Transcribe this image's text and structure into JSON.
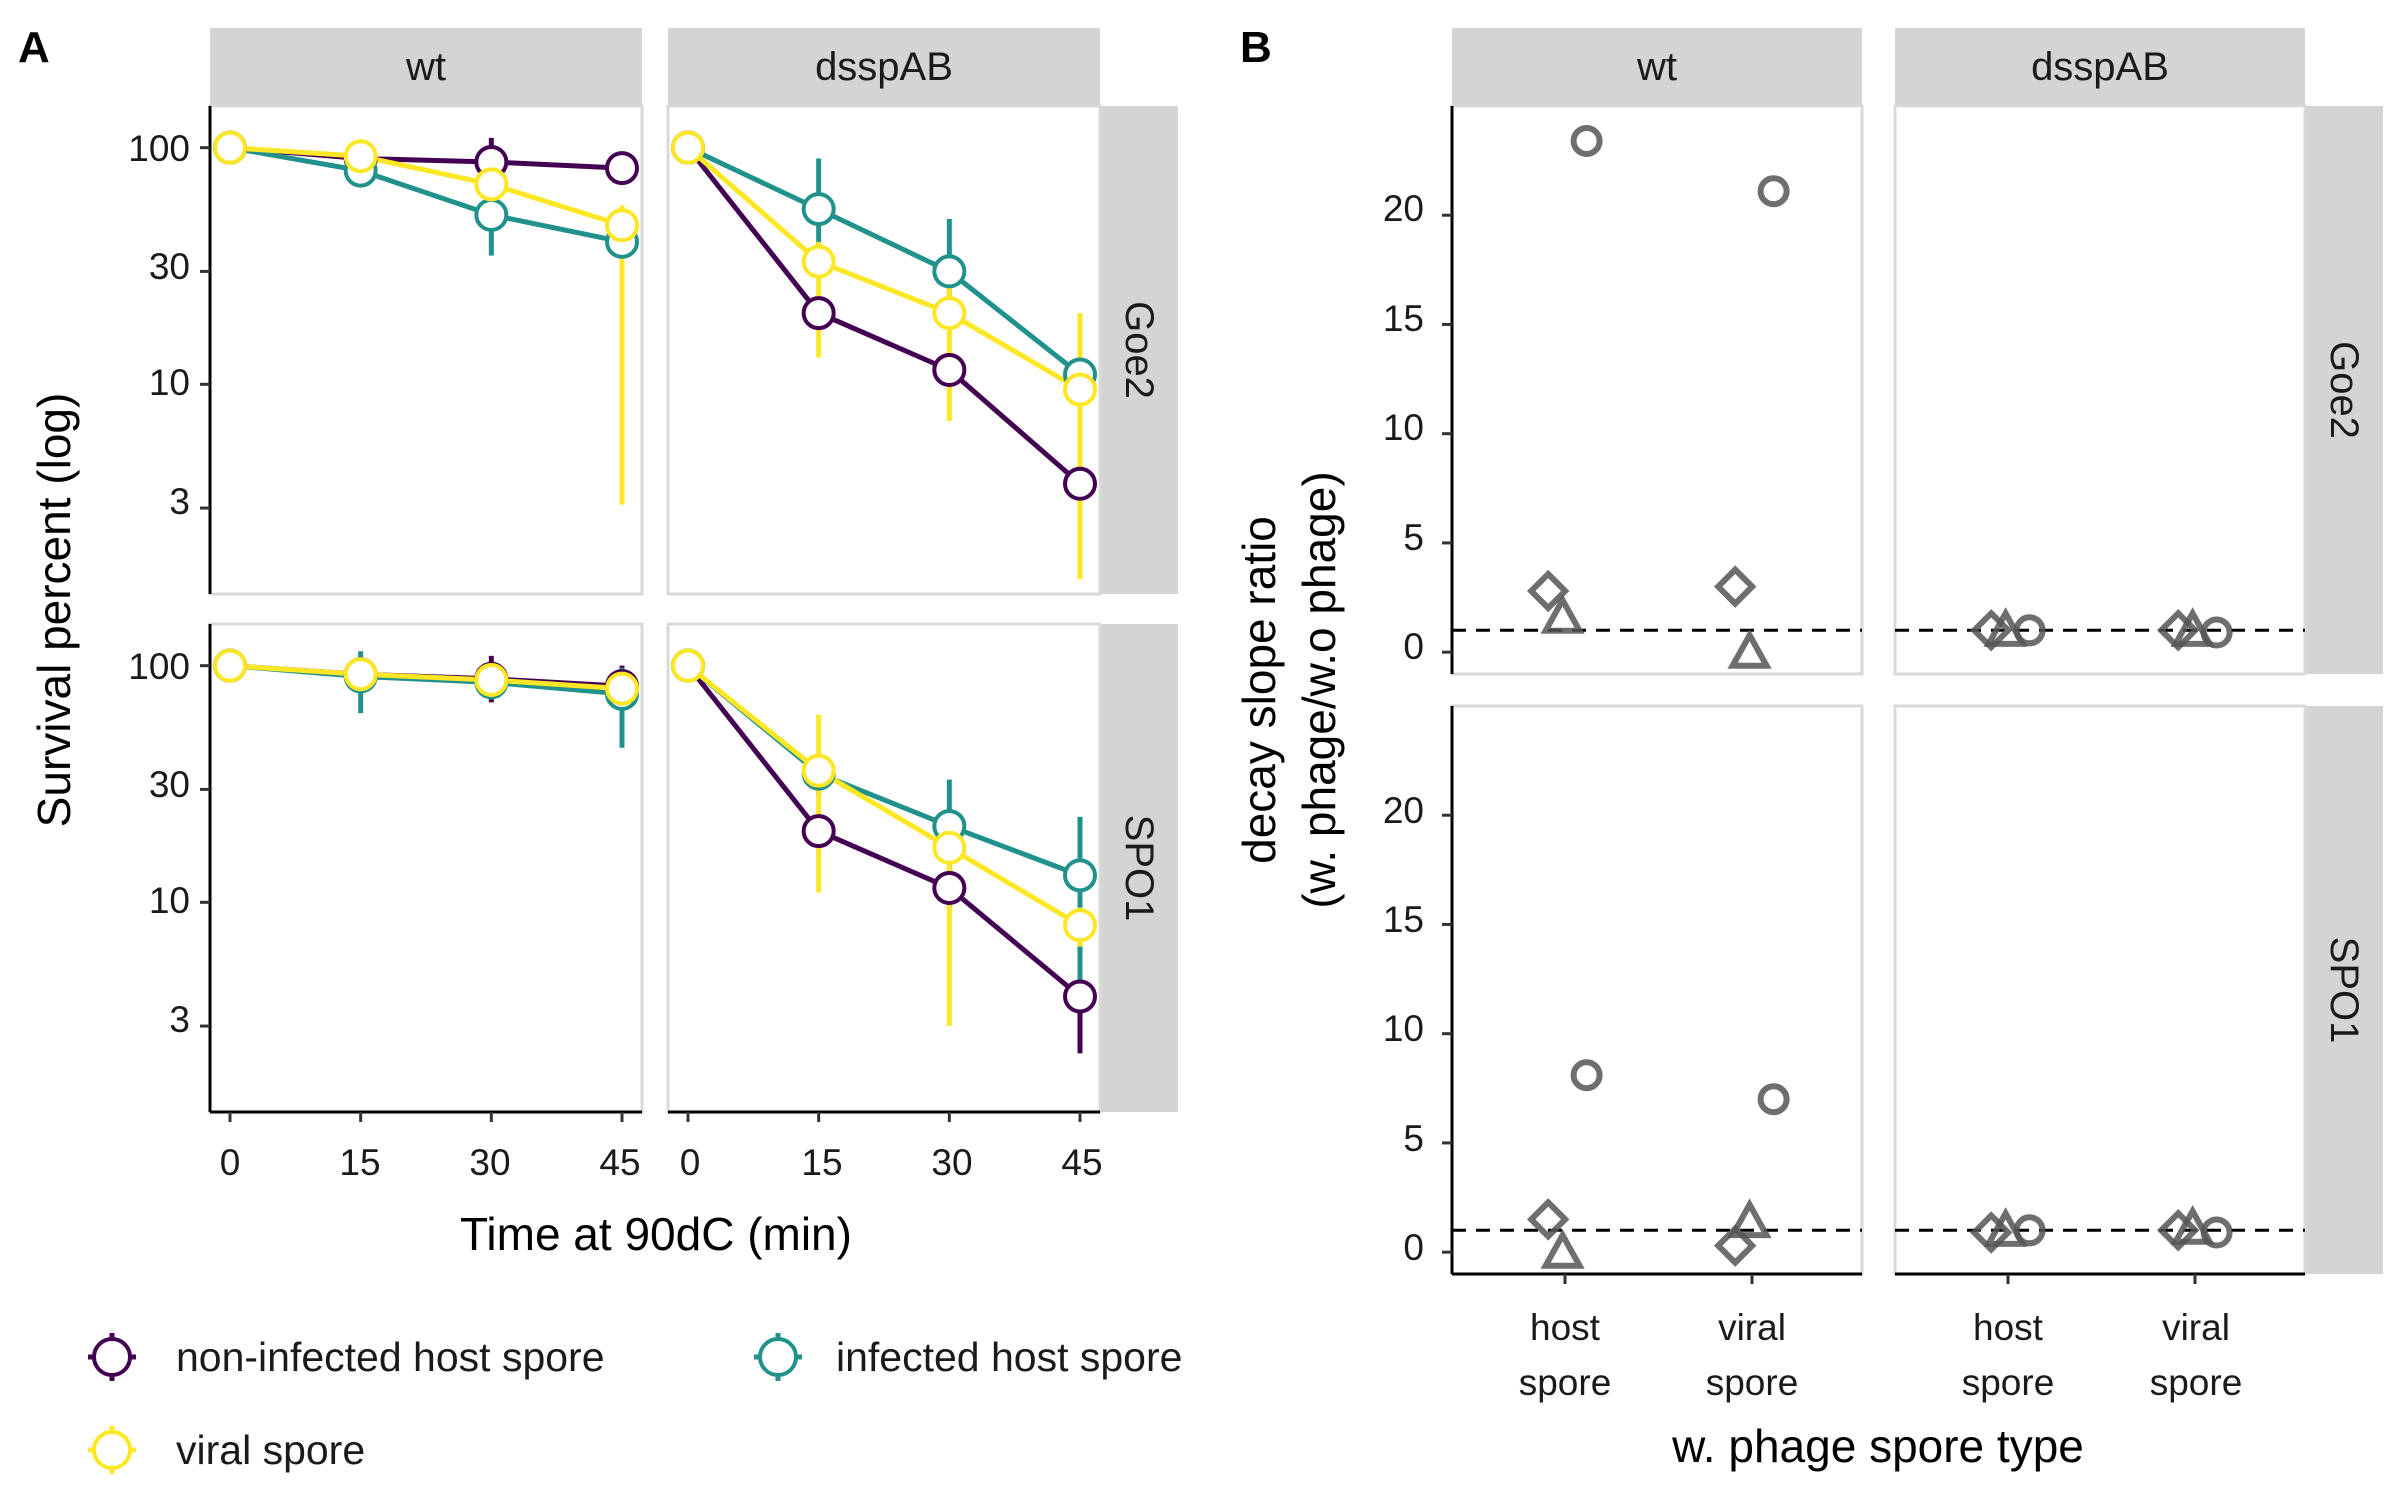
{
  "panel_a": {
    "tag": "A",
    "ylabel": "Survival percent (log)",
    "xlabel": "Time at 90dC (min)",
    "col_strips": [
      "wt",
      "dsspAB"
    ],
    "row_strips": [
      "Goe2",
      "SPO1"
    ],
    "x_ticks": [
      "0",
      "15",
      "30",
      "45"
    ],
    "y_ticks": [
      "100",
      "30",
      "10",
      "3"
    ]
  },
  "panel_b": {
    "tag": "B",
    "ylabel_line1": "decay slope ratio",
    "ylabel_line2": "(w. phage/w.o phage)",
    "xlabel": "w. phage spore type",
    "col_strips": [
      "wt",
      "dsspAB"
    ],
    "row_strips": [
      "Goe2",
      "SPO1"
    ],
    "x_categories": [
      {
        "line1": "host",
        "line2": "spore"
      },
      {
        "line1": "viral",
        "line2": "spore"
      }
    ],
    "y_ticks": [
      "20",
      "15",
      "10",
      "5",
      "0"
    ]
  },
  "legend": {
    "items": [
      {
        "label": "non-infected host spore",
        "color": "#440154"
      },
      {
        "label": "infected host spore",
        "color": "#21918C"
      },
      {
        "label": "viral spore",
        "color": "#FDE725"
      }
    ]
  },
  "chart_data": [
    {
      "type": "line",
      "panel": "A",
      "title": "",
      "xlabel": "Time at 90dC (min)",
      "ylabel": "Survival percent (log)",
      "y_scale": "log10",
      "ylim": [
        1.3,
        150
      ],
      "x_ticks": [
        0,
        15,
        30,
        45
      ],
      "y_ticks": [
        3,
        10,
        30,
        100
      ],
      "facet_cols": [
        "wt",
        "dsspAB"
      ],
      "facet_rows": [
        "Goe2",
        "SPO1"
      ],
      "grid": false,
      "legend": "bottom",
      "x": [
        0,
        15,
        30,
        45
      ],
      "series_colors": {
        "non-infected host spore": "#440154",
        "infected host spore": "#21918C",
        "viral spore": "#FDE725"
      },
      "facets": [
        {
          "col": "wt",
          "row": "Goe2",
          "series": [
            {
              "name": "non-infected host spore",
              "values": [
                100,
                90,
                87,
                82
              ],
              "err_lo": [
                100,
                85,
                75,
                76
              ],
              "err_hi": [
                100,
                95,
                110,
                88
              ]
            },
            {
              "name": "infected host spore",
              "values": [
                100,
                80,
                52,
                40
              ],
              "err_lo": [
                100,
                76,
                35,
                30
              ],
              "err_hi": [
                100,
                84,
                68,
                46
              ]
            },
            {
              "name": "viral spore",
              "values": [
                100,
                92,
                70,
                47
              ],
              "err_lo": [
                100,
                88,
                62,
                3.1
              ],
              "err_hi": [
                100,
                96,
                78,
                57
              ]
            }
          ]
        },
        {
          "col": "dsspAB",
          "row": "Goe2",
          "series": [
            {
              "name": "non-infected host spore",
              "values": [
                100,
                20,
                11.5,
                3.8
              ],
              "err_lo": [
                100,
                18,
                10.5,
                3.4
              ],
              "err_hi": [
                100,
                22,
                12.5,
                4.2
              ]
            },
            {
              "name": "infected host spore",
              "values": [
                100,
                55,
                30,
                11
              ],
              "err_lo": [
                100,
                34,
                18,
                9.5
              ],
              "err_hi": [
                100,
                90,
                50,
                13
              ]
            },
            {
              "name": "viral spore",
              "values": [
                100,
                33,
                20,
                9.5
              ],
              "err_lo": [
                100,
                13,
                7,
                1.5
              ],
              "err_hi": [
                100,
                40,
                27,
                20
              ]
            }
          ]
        },
        {
          "col": "wt",
          "row": "SPO1",
          "series": [
            {
              "name": "non-infected host spore",
              "values": [
                100,
                92,
                88,
                82
              ],
              "err_lo": [
                100,
                88,
                70,
                65
              ],
              "err_hi": [
                100,
                96,
                110,
                100
              ]
            },
            {
              "name": "infected host spore",
              "values": [
                100,
                90,
                85,
                76
              ],
              "err_lo": [
                100,
                63,
                72,
                45
              ],
              "err_hi": [
                100,
                115,
                100,
                98
              ]
            },
            {
              "name": "viral spore",
              "values": [
                100,
                92,
                87,
                80
              ],
              "err_lo": [
                100,
                88,
                80,
                68
              ],
              "err_hi": [
                100,
                96,
                93,
                90
              ]
            }
          ]
        },
        {
          "col": "dsspAB",
          "row": "SPO1",
          "series": [
            {
              "name": "non-infected host spore",
              "values": [
                100,
                20,
                11.5,
                4
              ],
              "err_lo": [
                100,
                17,
                9.5,
                2.3
              ],
              "err_hi": [
                100,
                23,
                13.5,
                4.6
              ]
            },
            {
              "name": "infected host spore",
              "values": [
                100,
                35,
                21,
                13
              ],
              "err_lo": [
                100,
                28,
                13,
                4.5
              ],
              "err_hi": [
                100,
                42,
                33,
                23
              ]
            },
            {
              "name": "viral spore",
              "values": [
                100,
                36,
                17,
                8
              ],
              "err_lo": [
                100,
                11,
                3,
                6.5
              ],
              "err_hi": [
                100,
                62,
                21,
                9.5
              ]
            }
          ]
        }
      ]
    },
    {
      "type": "scatter",
      "panel": "B",
      "title": "",
      "xlabel": "w. phage spore type",
      "ylabel": "decay slope ratio (w. phage/w.o phage)",
      "categories": [
        "host spore",
        "viral spore"
      ],
      "ylim": [
        -1,
        25
      ],
      "y_ticks": [
        0,
        5,
        10,
        15,
        20
      ],
      "reference_line": 1,
      "facet_cols": [
        "wt",
        "dsspAB"
      ],
      "facet_rows": [
        "Goe2",
        "SPO1"
      ],
      "grid": false,
      "series_colors": {
        "points": "#555555"
      },
      "facets": [
        {
          "col": "wt",
          "row": "Goe2",
          "points": [
            {
              "category": "host spore",
              "shape": "diamond",
              "y": 2.8
            },
            {
              "category": "host spore",
              "shape": "triangle",
              "y": 1.6
            },
            {
              "category": "host spore",
              "shape": "circle",
              "y": 23.4
            },
            {
              "category": "viral spore",
              "shape": "triangle",
              "y": 0.0
            },
            {
              "category": "viral spore",
              "shape": "diamond",
              "y": 3.0
            },
            {
              "category": "viral spore",
              "shape": "circle",
              "y": 21.1
            }
          ]
        },
        {
          "col": "dsspAB",
          "row": "Goe2",
          "points": [
            {
              "category": "host spore",
              "shape": "diamond",
              "y": 1.0
            },
            {
              "category": "host spore",
              "shape": "circle",
              "y": 1.0
            },
            {
              "category": "host spore",
              "shape": "triangle",
              "y": 1.0
            },
            {
              "category": "viral spore",
              "shape": "diamond",
              "y": 1.0
            },
            {
              "category": "viral spore",
              "shape": "circle",
              "y": 0.9
            },
            {
              "category": "viral spore",
              "shape": "triangle",
              "y": 1.0
            }
          ]
        },
        {
          "col": "wt",
          "row": "SPO1",
          "points": [
            {
              "category": "host spore",
              "shape": "triangle",
              "y": 0.0
            },
            {
              "category": "host spore",
              "shape": "diamond",
              "y": 1.5
            },
            {
              "category": "host spore",
              "shape": "circle",
              "y": 8.1
            },
            {
              "category": "viral spore",
              "shape": "triangle",
              "y": 1.4
            },
            {
              "category": "viral spore",
              "shape": "circle",
              "y": 7.0
            },
            {
              "category": "viral spore",
              "shape": "diamond",
              "y": 0.3
            }
          ]
        },
        {
          "col": "dsspAB",
          "row": "SPO1",
          "points": [
            {
              "category": "host spore",
              "shape": "triangle",
              "y": 1.0
            },
            {
              "category": "host spore",
              "shape": "diamond",
              "y": 0.9
            },
            {
              "category": "host spore",
              "shape": "circle",
              "y": 1.0
            },
            {
              "category": "viral spore",
              "shape": "diamond",
              "y": 1.0
            },
            {
              "category": "viral spore",
              "shape": "circle",
              "y": 0.9
            },
            {
              "category": "viral spore",
              "shape": "triangle",
              "y": 1.1
            }
          ]
        }
      ]
    }
  ]
}
